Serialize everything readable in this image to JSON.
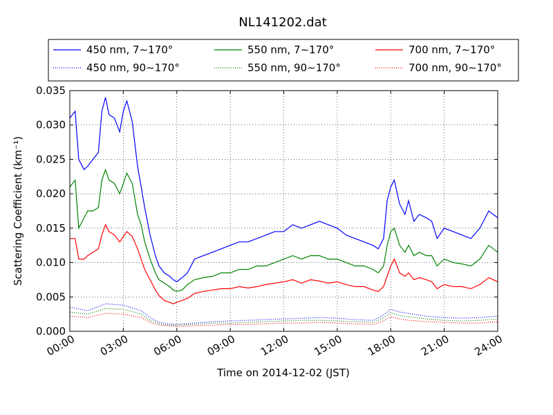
{
  "chart_data": {
    "type": "line",
    "title": "NL141202.dat",
    "xlabel": "Time on 2014-12-02 (JST)",
    "ylabel": "Scattering Coefficient (km⁻¹)",
    "xlim_hours": [
      0,
      24
    ],
    "ylim": [
      0,
      0.035
    ],
    "x_ticks": [
      {
        "hour": 0,
        "label": "00:00"
      },
      {
        "hour": 3,
        "label": "03:00"
      },
      {
        "hour": 6,
        "label": "06:00"
      },
      {
        "hour": 9,
        "label": "09:00"
      },
      {
        "hour": 12,
        "label": "12:00"
      },
      {
        "hour": 15,
        "label": "15:00"
      },
      {
        "hour": 18,
        "label": "18:00"
      },
      {
        "hour": 21,
        "label": "21:00"
      },
      {
        "hour": 24,
        "label": "24:00"
      }
    ],
    "y_ticks": [
      {
        "value": 0,
        "label": "0.000"
      },
      {
        "value": 0.005,
        "label": "0.005"
      },
      {
        "value": 0.01,
        "label": "0.010"
      },
      {
        "value": 0.015,
        "label": "0.015"
      },
      {
        "value": 0.02,
        "label": "0.020"
      },
      {
        "value": 0.025,
        "label": "0.025"
      },
      {
        "value": 0.03,
        "label": "0.030"
      },
      {
        "value": 0.035,
        "label": "0.035"
      }
    ],
    "grid": true,
    "legend_position": "top",
    "series": [
      {
        "name": "450 nm, 7∼170°",
        "color": "#0000ff",
        "style": "solid",
        "hours": [
          0,
          0.3,
          0.5,
          0.8,
          1.0,
          1.3,
          1.6,
          1.8,
          2.0,
          2.2,
          2.5,
          2.8,
          3.0,
          3.2,
          3.5,
          3.8,
          4.0,
          4.2,
          4.5,
          4.8,
          5.0,
          5.3,
          5.6,
          5.8,
          6.0,
          6.3,
          6.6,
          7.0,
          7.5,
          8.0,
          8.5,
          9.0,
          9.5,
          10.0,
          10.5,
          11.0,
          11.5,
          12.0,
          12.5,
          13.0,
          13.5,
          14.0,
          14.5,
          15.0,
          15.5,
          16.0,
          16.5,
          17.0,
          17.3,
          17.6,
          17.8,
          18.0,
          18.2,
          18.5,
          18.8,
          19.0,
          19.3,
          19.6,
          20.0,
          20.3,
          20.6,
          21.0,
          21.5,
          22.0,
          22.5,
          23.0,
          23.5,
          24.0
        ],
        "values": [
          0.031,
          0.032,
          0.025,
          0.0235,
          0.024,
          0.025,
          0.026,
          0.032,
          0.034,
          0.0315,
          0.031,
          0.029,
          0.032,
          0.0335,
          0.0305,
          0.024,
          0.021,
          0.018,
          0.014,
          0.011,
          0.0095,
          0.0085,
          0.008,
          0.0075,
          0.0072,
          0.0078,
          0.0085,
          0.0105,
          0.011,
          0.0115,
          0.012,
          0.0125,
          0.013,
          0.013,
          0.0135,
          0.014,
          0.0145,
          0.0145,
          0.0155,
          0.015,
          0.0155,
          0.016,
          0.0155,
          0.015,
          0.014,
          0.0135,
          0.013,
          0.0125,
          0.012,
          0.0135,
          0.019,
          0.021,
          0.022,
          0.0185,
          0.017,
          0.019,
          0.016,
          0.017,
          0.0165,
          0.016,
          0.0135,
          0.015,
          0.0145,
          0.014,
          0.0135,
          0.015,
          0.0175,
          0.0165
        ]
      },
      {
        "name": "550 nm, 7∼170°",
        "color": "#008000",
        "style": "solid",
        "hours": [
          0,
          0.3,
          0.5,
          0.8,
          1.0,
          1.3,
          1.6,
          1.8,
          2.0,
          2.2,
          2.5,
          2.8,
          3.0,
          3.2,
          3.5,
          3.8,
          4.0,
          4.2,
          4.5,
          4.8,
          5.0,
          5.3,
          5.6,
          5.8,
          6.0,
          6.3,
          6.6,
          7.0,
          7.5,
          8.0,
          8.5,
          9.0,
          9.5,
          10.0,
          10.5,
          11.0,
          11.5,
          12.0,
          12.5,
          13.0,
          13.5,
          14.0,
          14.5,
          15.0,
          15.5,
          16.0,
          16.5,
          17.0,
          17.3,
          17.6,
          17.8,
          18.0,
          18.2,
          18.5,
          18.8,
          19.0,
          19.3,
          19.6,
          20.0,
          20.3,
          20.6,
          21.0,
          21.5,
          22.0,
          22.5,
          23.0,
          23.5,
          24.0
        ],
        "values": [
          0.021,
          0.022,
          0.015,
          0.0165,
          0.0175,
          0.0175,
          0.018,
          0.022,
          0.0235,
          0.022,
          0.0215,
          0.02,
          0.0215,
          0.023,
          0.0215,
          0.017,
          0.0155,
          0.013,
          0.0105,
          0.0085,
          0.0075,
          0.007,
          0.0065,
          0.006,
          0.0058,
          0.006,
          0.0068,
          0.0075,
          0.0078,
          0.008,
          0.0085,
          0.0085,
          0.009,
          0.009,
          0.0095,
          0.0095,
          0.01,
          0.0105,
          0.011,
          0.0105,
          0.011,
          0.011,
          0.0105,
          0.0105,
          0.01,
          0.0095,
          0.0095,
          0.009,
          0.0085,
          0.0095,
          0.0125,
          0.0145,
          0.015,
          0.0125,
          0.0115,
          0.0125,
          0.011,
          0.0115,
          0.011,
          0.011,
          0.0095,
          0.0105,
          0.01,
          0.0098,
          0.0095,
          0.0105,
          0.0125,
          0.0115
        ]
      },
      {
        "name": "700 nm, 7∼170°",
        "color": "#ff0000",
        "style": "solid",
        "hours": [
          0,
          0.3,
          0.5,
          0.8,
          1.0,
          1.3,
          1.6,
          1.8,
          2.0,
          2.2,
          2.5,
          2.8,
          3.0,
          3.2,
          3.5,
          3.8,
          4.0,
          4.2,
          4.5,
          4.8,
          5.0,
          5.3,
          5.6,
          5.8,
          6.0,
          6.3,
          6.6,
          7.0,
          7.5,
          8.0,
          8.5,
          9.0,
          9.5,
          10.0,
          10.5,
          11.0,
          11.5,
          12.0,
          12.5,
          13.0,
          13.5,
          14.0,
          14.5,
          15.0,
          15.5,
          16.0,
          16.5,
          17.0,
          17.3,
          17.6,
          17.8,
          18.0,
          18.2,
          18.5,
          18.8,
          19.0,
          19.3,
          19.6,
          20.0,
          20.3,
          20.6,
          21.0,
          21.5,
          22.0,
          22.5,
          23.0,
          23.5,
          24.0
        ],
        "values": [
          0.0135,
          0.0135,
          0.0105,
          0.0105,
          0.011,
          0.0115,
          0.012,
          0.014,
          0.0155,
          0.0145,
          0.014,
          0.013,
          0.0138,
          0.0145,
          0.0138,
          0.012,
          0.0105,
          0.009,
          0.0075,
          0.006,
          0.0052,
          0.0045,
          0.0042,
          0.004,
          0.0042,
          0.0045,
          0.0048,
          0.0055,
          0.0058,
          0.006,
          0.0062,
          0.0062,
          0.0065,
          0.0063,
          0.0065,
          0.0068,
          0.007,
          0.0072,
          0.0075,
          0.007,
          0.0075,
          0.0073,
          0.007,
          0.0072,
          0.0068,
          0.0065,
          0.0065,
          0.006,
          0.0058,
          0.0065,
          0.008,
          0.0095,
          0.0105,
          0.0085,
          0.008,
          0.0085,
          0.0075,
          0.0078,
          0.0075,
          0.0072,
          0.0062,
          0.0068,
          0.0065,
          0.0065,
          0.0062,
          0.0068,
          0.0078,
          0.0072
        ]
      },
      {
        "name": "450 nm, 90∼170°",
        "color": "#0000ff",
        "style": "dotted",
        "hours": [
          0,
          1,
          2,
          3,
          4,
          4.5,
          5,
          5.5,
          6,
          7,
          8,
          9,
          10,
          11,
          12,
          13,
          14,
          15,
          16,
          17,
          17.5,
          18,
          18.5,
          19,
          20,
          21,
          22,
          23,
          24
        ],
        "values": [
          0.0035,
          0.003,
          0.004,
          0.0038,
          0.003,
          0.002,
          0.0013,
          0.0011,
          0.001,
          0.0012,
          0.0014,
          0.0015,
          0.0016,
          0.0017,
          0.0018,
          0.0019,
          0.002,
          0.0019,
          0.0017,
          0.0016,
          0.0022,
          0.0032,
          0.0028,
          0.0026,
          0.0022,
          0.002,
          0.0019,
          0.002,
          0.0022
        ]
      },
      {
        "name": "550 nm, 90∼170°",
        "color": "#008000",
        "style": "dotted",
        "hours": [
          0,
          1,
          2,
          3,
          4,
          4.5,
          5,
          5.5,
          6,
          7,
          8,
          9,
          10,
          11,
          12,
          13,
          14,
          15,
          16,
          17,
          17.5,
          18,
          18.5,
          19,
          20,
          21,
          22,
          23,
          24
        ],
        "values": [
          0.0028,
          0.0025,
          0.0033,
          0.0032,
          0.0025,
          0.0016,
          0.0011,
          0.0009,
          0.0009,
          0.001,
          0.0012,
          0.0012,
          0.0013,
          0.0014,
          0.0015,
          0.0016,
          0.0016,
          0.0015,
          0.0014,
          0.0013,
          0.0018,
          0.0027,
          0.0023,
          0.0021,
          0.0018,
          0.0016,
          0.0015,
          0.0016,
          0.0018
        ]
      },
      {
        "name": "700 nm, 90∼170°",
        "color": "#ff0000",
        "style": "dotted",
        "hours": [
          0,
          1,
          2,
          3,
          4,
          4.5,
          5,
          5.5,
          6,
          7,
          8,
          9,
          10,
          11,
          12,
          13,
          14,
          15,
          16,
          17,
          17.5,
          18,
          18.5,
          19,
          20,
          21,
          22,
          23,
          24
        ],
        "values": [
          0.0022,
          0.002,
          0.0026,
          0.0025,
          0.002,
          0.0013,
          0.0009,
          0.0008,
          0.0007,
          0.0008,
          0.0009,
          0.001,
          0.001,
          0.0011,
          0.0012,
          0.0012,
          0.0013,
          0.0012,
          0.0011,
          0.001,
          0.0014,
          0.0021,
          0.0018,
          0.0016,
          0.0014,
          0.0013,
          0.0012,
          0.0012,
          0.0014
        ]
      }
    ]
  }
}
